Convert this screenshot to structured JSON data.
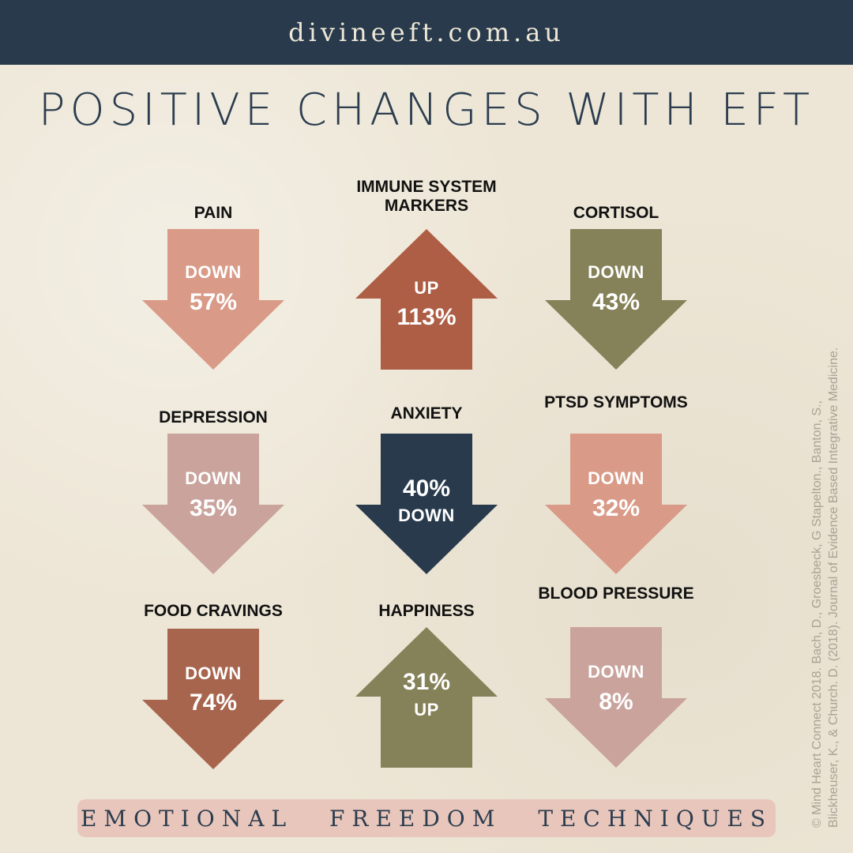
{
  "header": {
    "site": "divineeft.com.au"
  },
  "title": "POSITIVE CHANGES WITH EFT",
  "items": [
    {
      "label": "PAIN",
      "dir": "down",
      "line1": "DOWN",
      "line2": "57%",
      "color": "#d99a87"
    },
    {
      "label": "IMMUNE SYSTEM MARKERS",
      "dir": "up",
      "line1": "UP",
      "line2": "113%",
      "color": "#ae5e45"
    },
    {
      "label": "CORTISOL",
      "dir": "down",
      "line1": "DOWN",
      "line2": "43%",
      "color": "#858159"
    },
    {
      "label": "DEPRESSION",
      "dir": "down",
      "line1": "DOWN",
      "line2": "35%",
      "color": "#c9a39c"
    },
    {
      "label": "ANXIETY",
      "dir": "down",
      "line1": "40%",
      "line2": "DOWN",
      "color": "#283a4c"
    },
    {
      "label": "PTSD SYMPTOMS",
      "dir": "down",
      "line1": "DOWN",
      "line2": "32%",
      "color": "#d99a87"
    },
    {
      "label": "FOOD CRAVINGS",
      "dir": "down",
      "line1": "DOWN",
      "line2": "74%",
      "color": "#a8654d"
    },
    {
      "label": "HAPPINESS",
      "dir": "up",
      "line1": "31%",
      "line2": "UP",
      "color": "#858159"
    },
    {
      "label": "BLOOD PRESSURE",
      "dir": "down",
      "line1": "DOWN",
      "line2": "8%",
      "color": "#c9a39c"
    }
  ],
  "footer": {
    "text": "EMOTIONAL FREEDOM TECHNIQUES"
  },
  "citation": {
    "line1": "© Mind Heart Connect 2018. Bach, D., Groesbeck, G Stapelton., Banton, S.,",
    "line2": "Blickheuser, K., & Church. D. (2018). Journal of Evidence Based Integrative Medicine."
  }
}
